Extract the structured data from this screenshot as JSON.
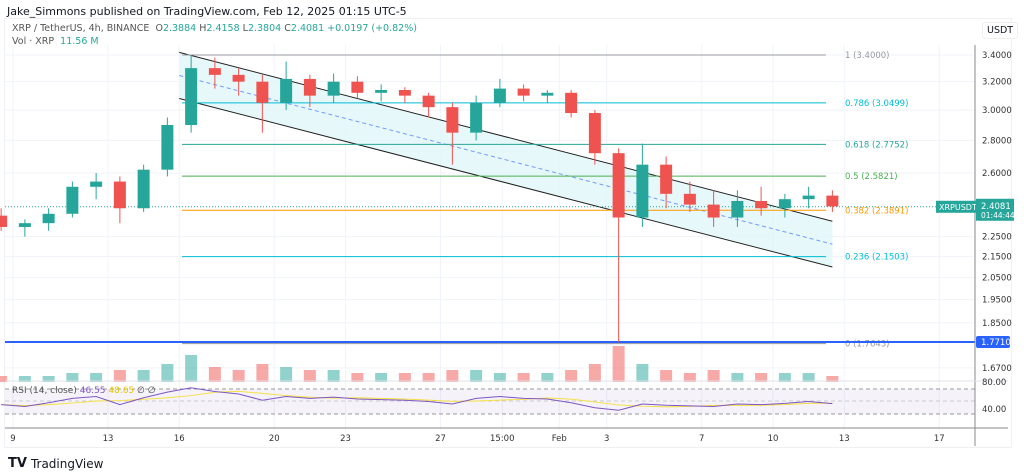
{
  "header": {
    "published": "Jake_Simmons published on TradingView.com, Feb 12, 2025 01:15 UTC-5"
  },
  "legend": {
    "symbol": "XRP / TetherUS, 4h, BINANCE",
    "o_label": "O",
    "o": "2.3884",
    "h_label": "H",
    "h": "2.4158",
    "l_label": "L",
    "l": "2.3804",
    "c_label": "C",
    "c": "2.4081",
    "change": "+0.0197 (+0.82%)",
    "vol_label": "Vol · XRP",
    "vol": "11.56 M"
  },
  "rsi": {
    "label": "RSI (14, close)",
    "value": "46.55",
    "ma": "48.65",
    "na1": "∅",
    "na2": "∅"
  },
  "footer": {
    "brand": "TradingView"
  },
  "colors": {
    "up": "#26a69a",
    "down": "#ef5350",
    "channel": "#e0f6f8",
    "rsi": "#7e57c2",
    "rsi_ma": "#f5e042",
    "hline": "#2962ff"
  },
  "chart_data": {
    "type": "candlestick",
    "title": "XRP / TetherUS, 4h, BINANCE",
    "ylabel": "USDT",
    "yscale": "log",
    "ylim": [
      1.62,
      3.55
    ],
    "y_ticks": [
      "3.4000",
      "3.2000",
      "3.0000",
      "2.8000",
      "2.6000",
      "2.2500",
      "2.1500",
      "2.0500",
      "1.9500",
      "1.8500",
      "1.6700"
    ],
    "x_ticks": [
      {
        "label": "9",
        "day": 9
      },
      {
        "label": "13",
        "day": 13
      },
      {
        "label": "16",
        "day": 16
      },
      {
        "label": "20",
        "day": 20
      },
      {
        "label": "23",
        "day": 23
      },
      {
        "label": "27",
        "day": 27
      },
      {
        "label": "15:00",
        "day": 29.6
      },
      {
        "label": "Feb",
        "day": 32
      },
      {
        "label": "3",
        "day": 34
      },
      {
        "label": "7",
        "day": 38
      },
      {
        "label": "10",
        "day": 41
      },
      {
        "label": "13",
        "day": 44
      },
      {
        "label": "17",
        "day": 48
      }
    ],
    "candles_daily_from_jan8": [
      [
        2.36,
        2.4,
        2.28,
        2.3
      ],
      [
        2.3,
        2.34,
        2.25,
        2.32
      ],
      [
        2.32,
        2.4,
        2.28,
        2.37
      ],
      [
        2.37,
        2.55,
        2.35,
        2.52
      ],
      [
        2.52,
        2.6,
        2.45,
        2.55
      ],
      [
        2.55,
        2.58,
        2.32,
        2.4
      ],
      [
        2.4,
        2.65,
        2.38,
        2.62
      ],
      [
        2.62,
        2.95,
        2.58,
        2.9
      ],
      [
        2.9,
        3.4,
        2.85,
        3.3
      ],
      [
        3.3,
        3.38,
        3.15,
        3.25
      ],
      [
        3.25,
        3.3,
        3.1,
        3.2
      ],
      [
        3.2,
        3.25,
        2.85,
        3.05
      ],
      [
        3.05,
        3.35,
        3.0,
        3.22
      ],
      [
        3.22,
        3.25,
        3.02,
        3.1
      ],
      [
        3.1,
        3.26,
        3.05,
        3.2
      ],
      [
        3.2,
        3.24,
        3.08,
        3.12
      ],
      [
        3.12,
        3.18,
        3.06,
        3.14
      ],
      [
        3.14,
        3.16,
        3.05,
        3.1
      ],
      [
        3.1,
        3.12,
        2.95,
        3.02
      ],
      [
        3.02,
        3.05,
        2.65,
        2.85
      ],
      [
        2.85,
        3.1,
        2.8,
        3.05
      ],
      [
        3.05,
        3.22,
        3.02,
        3.15
      ],
      [
        3.15,
        3.18,
        3.06,
        3.1
      ],
      [
        3.1,
        3.14,
        3.05,
        3.12
      ],
      [
        3.12,
        3.14,
        2.95,
        2.98
      ],
      [
        2.98,
        3.0,
        2.65,
        2.72
      ],
      [
        2.72,
        2.75,
        1.77,
        2.35
      ],
      [
        2.35,
        2.78,
        2.3,
        2.65
      ],
      [
        2.65,
        2.7,
        2.4,
        2.48
      ],
      [
        2.48,
        2.55,
        2.38,
        2.42
      ],
      [
        2.42,
        2.5,
        2.3,
        2.35
      ],
      [
        2.35,
        2.5,
        2.3,
        2.44
      ],
      [
        2.44,
        2.52,
        2.36,
        2.4
      ],
      [
        2.4,
        2.48,
        2.35,
        2.45
      ],
      [
        2.45,
        2.52,
        2.4,
        2.47
      ],
      [
        2.47,
        2.5,
        2.38,
        2.41
      ]
    ],
    "volume_relative": [
      2,
      2,
      2,
      3,
      3,
      4,
      4,
      6,
      9,
      5,
      4,
      6,
      5,
      4,
      4,
      3,
      3,
      3,
      3,
      4,
      4,
      3,
      3,
      3,
      4,
      6,
      12,
      6,
      4,
      3,
      4,
      3,
      3,
      3,
      3,
      2
    ],
    "rsi_values": [
      45,
      42,
      48,
      55,
      58,
      45,
      56,
      65,
      72,
      66,
      62,
      52,
      58,
      55,
      57,
      54,
      53,
      52,
      50,
      46,
      55,
      58,
      55,
      54,
      48,
      40,
      36,
      46,
      44,
      43,
      42,
      46,
      45,
      47,
      50,
      46.55
    ],
    "fib_levels": [
      {
        "label": "1 (3.4000)",
        "price": 3.4,
        "color": "#9598a1"
      },
      {
        "label": "0.786 (3.0499)",
        "price": 3.0499,
        "color": "#00bcd4"
      },
      {
        "label": "0.618 (2.7752)",
        "price": 2.7752,
        "color": "#26a69a"
      },
      {
        "label": "0.5 (2.5821)",
        "price": 2.5821,
        "color": "#4caf50"
      },
      {
        "label": "0.382 (2.3891)",
        "price": 2.3891,
        "color": "#ff9800"
      },
      {
        "label": "0.236 (2.1503)",
        "price": 2.1503,
        "color": "#00bcd4"
      },
      {
        "label": "0 (1.7643)",
        "price": 1.7643,
        "color": "#9598a1"
      }
    ],
    "channel": {
      "start_day": 16,
      "end_day": 43.5,
      "upper": [
        3.42,
        2.33
      ],
      "lower": [
        3.08,
        2.1
      ]
    },
    "hline": {
      "price": 1.771,
      "label": "1.7710"
    },
    "last_price": {
      "price": 2.4081,
      "symbol": "XRPUSDT",
      "label": "2.4081",
      "countdown": "01:44:44"
    },
    "rsi_ticks": [
      "80.00",
      "40.00"
    ]
  }
}
